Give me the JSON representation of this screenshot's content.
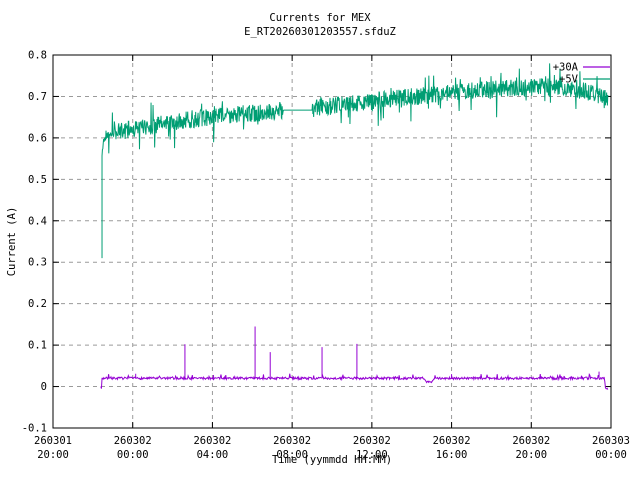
{
  "background": "#ffffff",
  "chart_data": {
    "type": "line",
    "title": "Currents for MEX",
    "subtitle": "E_RT20260301203557.sfduZ",
    "xlabel": "Time (yymmdd HH:MM)",
    "ylabel": "Current (A)",
    "ylim": [
      -0.1,
      0.8
    ],
    "x_hours_range": [
      0,
      28
    ],
    "grid": true,
    "grid_color": "#9a9a9a",
    "border_color": "#000000",
    "yticks": [
      {
        "v": -0.1,
        "label": "-0.1"
      },
      {
        "v": 0.0,
        "label": "0"
      },
      {
        "v": 0.1,
        "label": "0.1"
      },
      {
        "v": 0.2,
        "label": "0.2"
      },
      {
        "v": 0.3,
        "label": "0.3"
      },
      {
        "v": 0.4,
        "label": "0.4"
      },
      {
        "v": 0.5,
        "label": "0.5"
      },
      {
        "v": 0.6,
        "label": "0.6"
      },
      {
        "v": 0.7,
        "label": "0.7"
      },
      {
        "v": 0.8,
        "label": "0.8"
      }
    ],
    "xticks": [
      {
        "hour": 0,
        "date": "260301",
        "time": "20:00"
      },
      {
        "hour": 4,
        "date": "260302",
        "time": "00:00"
      },
      {
        "hour": 8,
        "date": "260302",
        "time": "04:00"
      },
      {
        "hour": 12,
        "date": "260302",
        "time": "08:00"
      },
      {
        "hour": 16,
        "date": "260302",
        "time": "12:00"
      },
      {
        "hour": 20,
        "date": "260302",
        "time": "16:00"
      },
      {
        "hour": 24,
        "date": "260302",
        "time": "20:00"
      },
      {
        "hour": 28,
        "date": "260303",
        "time": "00:00"
      }
    ],
    "legend": {
      "position": "top-right",
      "entries": [
        {
          "label": "+30A",
          "color": "#9400d3"
        },
        {
          "label": "+5V",
          "color": "#009e73"
        }
      ]
    },
    "series": [
      {
        "name": "+30A",
        "color": "#9400d3",
        "seed": 7,
        "start_hour": 2.4,
        "end_hour": 27.85,
        "step": 0.03,
        "noise_amp": 0.0028,
        "up_tick": 0.009,
        "baseline": [
          [
            2.4,
            -0.006
          ],
          [
            2.43,
            -0.006
          ],
          [
            2.46,
            0.02
          ],
          [
            18.62,
            0.02
          ],
          [
            18.7,
            0.0125
          ],
          [
            19.05,
            0.0125
          ],
          [
            19.12,
            0.02
          ],
          [
            27.68,
            0.02
          ],
          [
            27.72,
            -0.005
          ],
          [
            27.85,
            -0.005
          ]
        ],
        "spikes": [
          [
            4.15,
            0.031
          ],
          [
            6.62,
            0.102
          ],
          [
            8.05,
            0.028
          ],
          [
            10.14,
            0.145
          ],
          [
            10.9,
            0.083
          ],
          [
            13.5,
            0.095
          ],
          [
            15.25,
            0.103
          ],
          [
            20.0,
            0.03
          ],
          [
            27.4,
            0.036
          ]
        ]
      },
      {
        "name": "+5V",
        "color": "#009e73",
        "seed": 42,
        "start_hour": 2.46,
        "end_hour": 27.85,
        "step": 0.02,
        "noise_amp": 0.021,
        "spike_amp": 0.05,
        "calm_until": 3.1,
        "start_drop": [
          0.31,
          0.555
        ],
        "gap": [
          11.56,
          13.0
        ],
        "baseline": [
          [
            2.46,
            0.555
          ],
          [
            2.52,
            0.59
          ],
          [
            2.7,
            0.607
          ],
          [
            3.5,
            0.617
          ],
          [
            5,
            0.63
          ],
          [
            7,
            0.645
          ],
          [
            9,
            0.656
          ],
          [
            11.0,
            0.663
          ],
          [
            11.54,
            0.667
          ],
          [
            13.02,
            0.667
          ],
          [
            13.2,
            0.673
          ],
          [
            14,
            0.677
          ],
          [
            16,
            0.688
          ],
          [
            18,
            0.699
          ],
          [
            20,
            0.71
          ],
          [
            22,
            0.717
          ],
          [
            23.5,
            0.722
          ],
          [
            25,
            0.723
          ],
          [
            26,
            0.717
          ],
          [
            27,
            0.71
          ],
          [
            27.5,
            0.703
          ],
          [
            27.85,
            0.697
          ]
        ],
        "spikes": []
      }
    ]
  }
}
